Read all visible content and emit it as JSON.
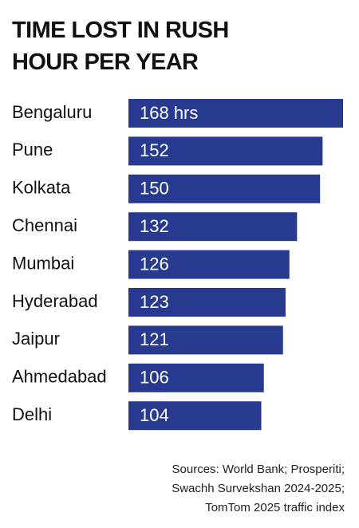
{
  "chart_data": {
    "type": "hbar",
    "title": "TIME LOST IN RUSH HOUR PER YEAR",
    "categories": [
      "Bengaluru",
      "Pune",
      "Kolkata",
      "Chennai",
      "Mumbai",
      "Hyderabad",
      "Jaipur",
      "Ahmedabad",
      "Delhi"
    ],
    "values": [
      168,
      152,
      150,
      132,
      126,
      123,
      121,
      106,
      104
    ],
    "value_labels": [
      "168 hrs",
      "152",
      "150",
      "132",
      "126",
      "123",
      "121",
      "106",
      "104"
    ],
    "color": "#283a8f",
    "source": "Sources: World Bank; Prosperiti; Swachh Survekshan 2024-2025; TomTom 2025 traffic index"
  }
}
